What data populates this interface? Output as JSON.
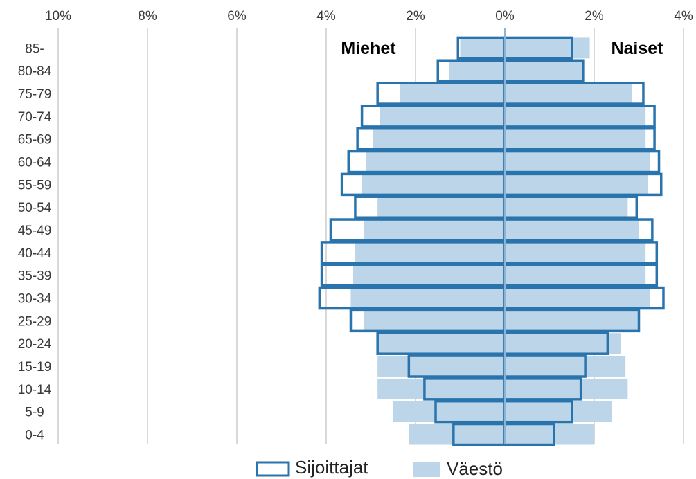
{
  "chart_data": {
    "type": "bar",
    "orientation": "horizontal-population-pyramid",
    "categories": [
      "85-",
      "80-84",
      "75-79",
      "70-74",
      "65-69",
      "60-64",
      "55-59",
      "50-54",
      "45-49",
      "40-44",
      "35-39",
      "30-34",
      "25-29",
      "20-24",
      "15-19",
      "10-14",
      "5-9",
      "0-4"
    ],
    "x_ticks": [
      "10%",
      "8%",
      "6%",
      "4%",
      "2%",
      "0%",
      "2%",
      "4%"
    ],
    "xlim": [
      -10,
      4
    ],
    "grid": true,
    "left_label": "Miehet",
    "right_label": "Naiset",
    "series": [
      {
        "name": "Väestö",
        "color": "#bcd5e8",
        "style": "filled",
        "men": [
          1.0,
          1.25,
          2.35,
          2.8,
          2.95,
          3.1,
          3.2,
          2.85,
          3.15,
          3.35,
          3.4,
          3.45,
          3.15,
          2.85,
          2.85,
          2.85,
          2.5,
          2.15
        ],
        "women": [
          1.9,
          1.75,
          2.85,
          3.15,
          3.15,
          3.25,
          3.2,
          2.75,
          3.0,
          3.15,
          3.15,
          3.25,
          3.0,
          2.6,
          2.7,
          2.75,
          2.4,
          2.0
        ]
      },
      {
        "name": "Sijoittajat",
        "color": "#2a74ad",
        "style": "outline",
        "men": [
          1.05,
          1.5,
          2.85,
          3.2,
          3.3,
          3.5,
          3.65,
          3.35,
          3.9,
          4.1,
          4.1,
          4.15,
          3.45,
          2.85,
          2.15,
          1.8,
          1.55,
          1.15
        ],
        "women": [
          1.5,
          1.75,
          3.1,
          3.35,
          3.35,
          3.45,
          3.5,
          2.95,
          3.3,
          3.4,
          3.4,
          3.55,
          3.0,
          2.3,
          1.8,
          1.7,
          1.5,
          1.1
        ]
      }
    ]
  }
}
